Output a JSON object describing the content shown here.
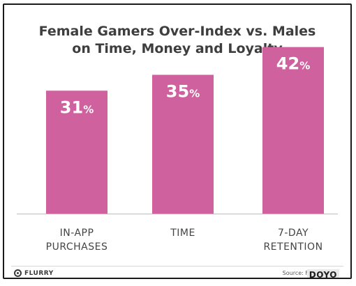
{
  "chart_data": {
    "type": "bar",
    "title_lines": [
      "Female Gamers Over-Index vs. Males",
      "on Time, Money and Loyalty"
    ],
    "categories": [
      [
        "IN-APP",
        "PURCHASES"
      ],
      [
        "TIME"
      ],
      [
        "7-DAY",
        "RETENTION"
      ]
    ],
    "values": [
      31,
      35,
      42
    ],
    "value_labels": [
      "31",
      "35",
      "42"
    ],
    "value_suffix": "%",
    "ylim": [
      0,
      50
    ],
    "bar_color": "#d0619f",
    "label_color": "#ffffff",
    "axis_text_color": "#444444",
    "grid": false
  },
  "footer": {
    "brand": "FLURRY",
    "brand_icon": "flurry-logo-icon",
    "source": "Source: F",
    "watermark": "DOYO"
  }
}
